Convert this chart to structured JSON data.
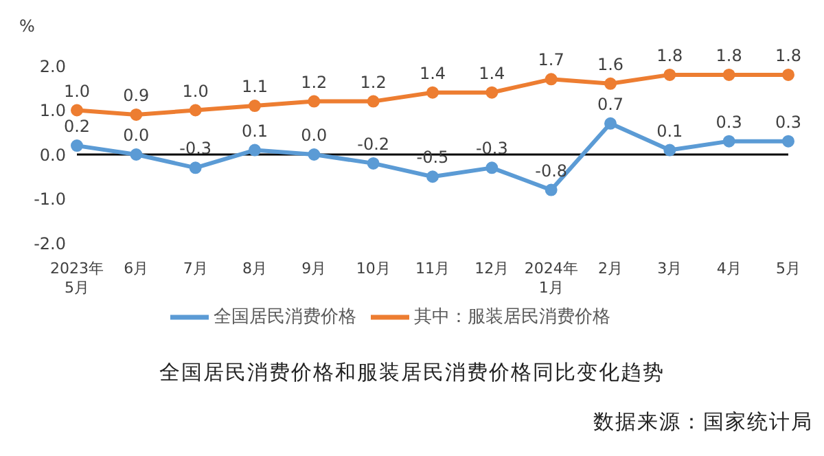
{
  "chart_data": {
    "type": "line",
    "title": "全国居民消费价格和服装居民消费价格同比变化趋势",
    "ylabel": "%",
    "categories": [
      "2023年\n5月",
      "6月",
      "7月",
      "8月",
      "9月",
      "10月",
      "11月",
      "12月",
      "2024年\n1月",
      "2月",
      "3月",
      "4月",
      "5月"
    ],
    "series": [
      {
        "name": "全国居民消费价格",
        "color": "#5b9bd5",
        "values": [
          0.2,
          0.0,
          -0.3,
          0.1,
          0.0,
          -0.2,
          -0.5,
          -0.3,
          -0.8,
          0.7,
          0.1,
          0.3,
          0.3
        ],
        "value_labels": [
          "0.2",
          "0.0",
          "-0.3",
          "0.1",
          "0.0",
          "-0.2",
          "-0.5",
          "-0.3",
          "-0.8",
          "0.7",
          "0.1",
          "0.3",
          "0.3"
        ]
      },
      {
        "name": "其中：服装居民消费价格",
        "color": "#ed7d31",
        "values": [
          1.0,
          0.9,
          1.0,
          1.1,
          1.2,
          1.2,
          1.4,
          1.4,
          1.7,
          1.6,
          1.8,
          1.8,
          1.8
        ],
        "value_labels": [
          "1.0",
          "0.9",
          "1.0",
          "1.1",
          "1.2",
          "1.2",
          "1.4",
          "1.4",
          "1.7",
          "1.6",
          "1.8",
          "1.8",
          "1.8"
        ]
      }
    ],
    "ylim": [
      -2,
      2
    ],
    "yticks": [
      {
        "value": -2,
        "label": "-2.0"
      },
      {
        "value": -1,
        "label": "-1.0"
      },
      {
        "value": 0,
        "label": "0.0"
      },
      {
        "value": 1,
        "label": "1.0"
      },
      {
        "value": 2,
        "label": "2.0"
      }
    ],
    "ref_lines": [
      {
        "axis": "y",
        "value": 0,
        "color": "#000000"
      }
    ],
    "legend": "bottom",
    "grid": false,
    "marker": "circle",
    "line_style": "solid",
    "annotations": [
      "数据来源：国家统计局"
    ]
  }
}
